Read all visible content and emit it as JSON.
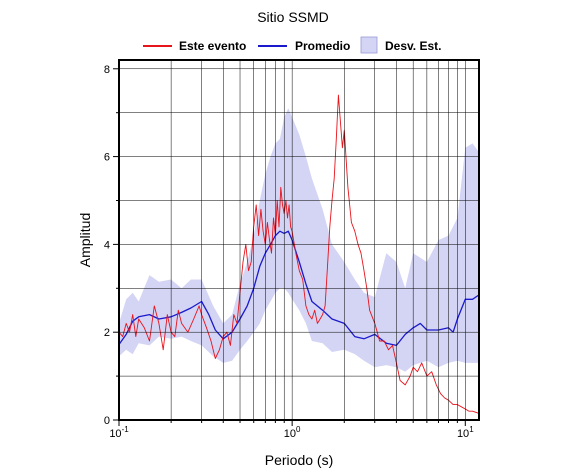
{
  "chart_data": {
    "type": "line",
    "title": "Sitio SSMD",
    "xlabel": "Periodo (s)",
    "ylabel": "Amplitud",
    "x_scale": "log",
    "xlim": [
      0.1,
      12
    ],
    "ylim": [
      0,
      8.2
    ],
    "x_ticks": [
      {
        "value": 0.1,
        "base": "10",
        "exp": "-1"
      },
      {
        "value": 1,
        "base": "10",
        "exp": "0"
      },
      {
        "value": 10,
        "base": "10",
        "exp": "1"
      }
    ],
    "y_ticks": [
      0,
      2,
      4,
      6,
      8
    ],
    "grid": true,
    "legend": {
      "position": "top",
      "items": [
        {
          "label": "Este evento",
          "kind": "line",
          "color": "#e8141c"
        },
        {
          "label": "Promedio",
          "kind": "line",
          "color": "#1a1acc"
        },
        {
          "label": "Desv. Est.",
          "kind": "band",
          "color": "#d4d4f5"
        }
      ]
    },
    "band": {
      "name": "Desv. Est.",
      "color": "#d4d4f5",
      "x": [
        0.1,
        0.11,
        0.12,
        0.13,
        0.15,
        0.17,
        0.2,
        0.23,
        0.26,
        0.3,
        0.35,
        0.4,
        0.45,
        0.5,
        0.55,
        0.6,
        0.65,
        0.7,
        0.75,
        0.8,
        0.85,
        0.9,
        0.95,
        1.0,
        1.1,
        1.2,
        1.3,
        1.5,
        1.7,
        2.0,
        2.3,
        2.6,
        3.0,
        3.5,
        4.0,
        4.5,
        5.0,
        6.0,
        7.0,
        8.0,
        9.0,
        10.0,
        11.0,
        12.0
      ],
      "lower": [
        1.45,
        1.6,
        1.5,
        1.75,
        1.7,
        1.9,
        1.85,
        1.9,
        1.8,
        1.7,
        1.45,
        1.3,
        1.35,
        1.6,
        1.8,
        2.0,
        2.2,
        2.5,
        2.7,
        2.9,
        3.0,
        3.0,
        2.9,
        2.75,
        2.5,
        2.2,
        1.8,
        1.75,
        1.55,
        1.6,
        1.5,
        1.35,
        1.2,
        1.25,
        1.2,
        1.1,
        1.25,
        1.35,
        1.2,
        1.3,
        1.35,
        1.3,
        1.3,
        1.3
      ],
      "upper": [
        2.2,
        2.75,
        2.9,
        2.7,
        3.3,
        3.15,
        3.2,
        3.0,
        3.2,
        3.2,
        2.6,
        2.2,
        2.4,
        3.1,
        3.6,
        4.2,
        5.0,
        5.6,
        6.0,
        6.3,
        6.4,
        6.9,
        7.1,
        6.9,
        6.5,
        6.0,
        5.5,
        4.8,
        4.0,
        3.6,
        3.2,
        2.9,
        2.8,
        3.8,
        3.6,
        3.0,
        3.8,
        3.6,
        4.1,
        4.2,
        4.6,
        6.2,
        6.3,
        6.1
      ]
    },
    "series": [
      {
        "name": "Promedio",
        "color": "#1a1acc",
        "x": [
          0.1,
          0.11,
          0.12,
          0.13,
          0.15,
          0.17,
          0.2,
          0.23,
          0.26,
          0.3,
          0.33,
          0.36,
          0.4,
          0.45,
          0.5,
          0.55,
          0.6,
          0.65,
          0.7,
          0.75,
          0.8,
          0.85,
          0.9,
          0.95,
          1.0,
          1.1,
          1.2,
          1.3,
          1.5,
          1.7,
          2.0,
          2.3,
          2.6,
          3.0,
          3.5,
          4.0,
          4.5,
          5.0,
          5.5,
          6.0,
          7.0,
          8.0,
          8.5,
          9.0,
          10.0,
          11.0,
          12.0
        ],
        "y": [
          1.72,
          1.95,
          2.25,
          2.35,
          2.4,
          2.3,
          2.35,
          2.45,
          2.55,
          2.7,
          2.4,
          2.05,
          1.85,
          2.0,
          2.3,
          2.6,
          3.0,
          3.5,
          3.8,
          4.0,
          4.2,
          4.3,
          4.25,
          4.3,
          4.1,
          3.6,
          3.1,
          2.7,
          2.5,
          2.3,
          2.2,
          1.9,
          1.85,
          1.95,
          1.75,
          1.7,
          1.95,
          2.1,
          2.2,
          2.05,
          2.05,
          2.1,
          2.0,
          2.3,
          2.75,
          2.75,
          2.85
        ]
      },
      {
        "name": "Este evento",
        "color": "#e8141c",
        "x": [
          0.1,
          0.105,
          0.11,
          0.115,
          0.12,
          0.125,
          0.13,
          0.14,
          0.15,
          0.16,
          0.17,
          0.18,
          0.19,
          0.2,
          0.21,
          0.22,
          0.23,
          0.25,
          0.27,
          0.29,
          0.3,
          0.32,
          0.34,
          0.36,
          0.38,
          0.4,
          0.42,
          0.44,
          0.46,
          0.48,
          0.5,
          0.52,
          0.54,
          0.56,
          0.58,
          0.6,
          0.62,
          0.64,
          0.66,
          0.68,
          0.7,
          0.72,
          0.74,
          0.76,
          0.78,
          0.8,
          0.82,
          0.84,
          0.86,
          0.88,
          0.9,
          0.92,
          0.94,
          0.96,
          0.98,
          1.0,
          1.05,
          1.1,
          1.15,
          1.2,
          1.25,
          1.3,
          1.35,
          1.4,
          1.45,
          1.5,
          1.55,
          1.6,
          1.65,
          1.7,
          1.75,
          1.8,
          1.85,
          1.9,
          1.95,
          2.0,
          2.1,
          2.2,
          2.3,
          2.4,
          2.5,
          2.6,
          2.7,
          2.8,
          3.0,
          3.2,
          3.4,
          3.6,
          3.8,
          4.0,
          4.2,
          4.5,
          4.8,
          5.0,
          5.3,
          5.6,
          6.0,
          6.4,
          6.8,
          7.2,
          7.6,
          8.0,
          8.5,
          9.0,
          9.5,
          10.0,
          10.5,
          11.0,
          12.0
        ],
        "y": [
          2.0,
          1.9,
          2.2,
          2.0,
          2.4,
          1.9,
          2.3,
          2.1,
          1.8,
          2.6,
          2.2,
          1.6,
          2.4,
          2.0,
          1.9,
          2.5,
          2.2,
          2.0,
          2.3,
          2.6,
          2.4,
          2.1,
          1.8,
          1.4,
          1.6,
          1.9,
          2.0,
          1.7,
          2.4,
          2.2,
          2.9,
          3.6,
          4.0,
          3.4,
          3.6,
          4.4,
          4.9,
          4.2,
          4.8,
          4.3,
          4.0,
          4.5,
          4.1,
          3.8,
          4.6,
          4.2,
          5.0,
          4.4,
          5.3,
          4.9,
          4.7,
          5.0,
          4.6,
          4.9,
          4.4,
          4.3,
          3.8,
          3.4,
          3.2,
          2.6,
          2.4,
          2.3,
          2.5,
          2.2,
          2.3,
          2.4,
          2.6,
          3.5,
          4.4,
          5.0,
          5.5,
          6.4,
          7.4,
          6.8,
          6.2,
          6.6,
          5.3,
          4.5,
          4.3,
          4.0,
          3.8,
          3.4,
          3.0,
          2.5,
          2.2,
          1.8,
          1.8,
          1.6,
          1.7,
          1.3,
          0.9,
          0.8,
          1.0,
          1.2,
          1.1,
          1.3,
          1.0,
          1.1,
          0.8,
          0.6,
          0.5,
          0.45,
          0.35,
          0.35,
          0.3,
          0.25,
          0.2,
          0.2,
          0.15
        ]
      }
    ]
  }
}
